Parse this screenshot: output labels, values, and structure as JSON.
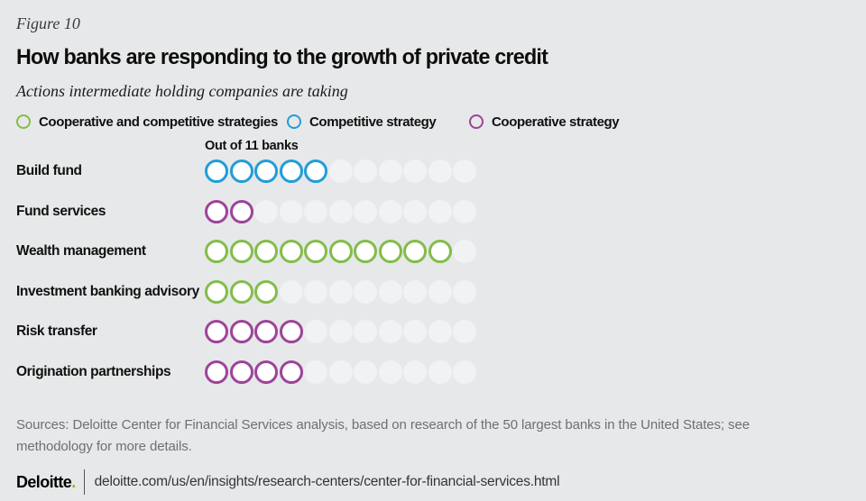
{
  "page": {
    "background": "#e7e8e9"
  },
  "figure_label": "Figure 10",
  "title": "How banks are responding to the growth of private credit",
  "subtitle": "Actions intermediate holding companies are taking",
  "legend": [
    {
      "key": "both",
      "label": "Cooperative and competitive strategies",
      "color": "#82bd49"
    },
    {
      "key": "competitive",
      "label": "Competitive strategy",
      "color": "#1f9ed8"
    },
    {
      "key": "cooperative",
      "label": "Cooperative strategy",
      "color": "#9d4399"
    }
  ],
  "chart_data": {
    "type": "bar",
    "subtype": "unit_pictogram",
    "annotation": "Out of 11 banks",
    "unit_total": 11,
    "categories": [
      "Build fund",
      "Fund services",
      "Wealth management",
      "Investment banking advisory",
      "Risk transfer",
      "Origination partnerships"
    ],
    "values": [
      5,
      2,
      10,
      3,
      4,
      4
    ],
    "strategies": [
      "competitive",
      "cooperative",
      "both",
      "both",
      "cooperative",
      "cooperative"
    ],
    "unit_fill_color": "#ffffff",
    "empty_unit_color": "#f1f2f3",
    "legend_position": "top",
    "grid": false
  },
  "sources": "Sources: Deloitte Center for Financial Services analysis, based on research of the 50 largest banks in the United States; see methodology for more details.",
  "footer": {
    "logo_text": "Deloitte",
    "logo_dot": ".",
    "logo_dot_color": "#86bc25",
    "url": "deloitte.com/us/en/insights/research-centers/center-for-financial-services.html"
  }
}
